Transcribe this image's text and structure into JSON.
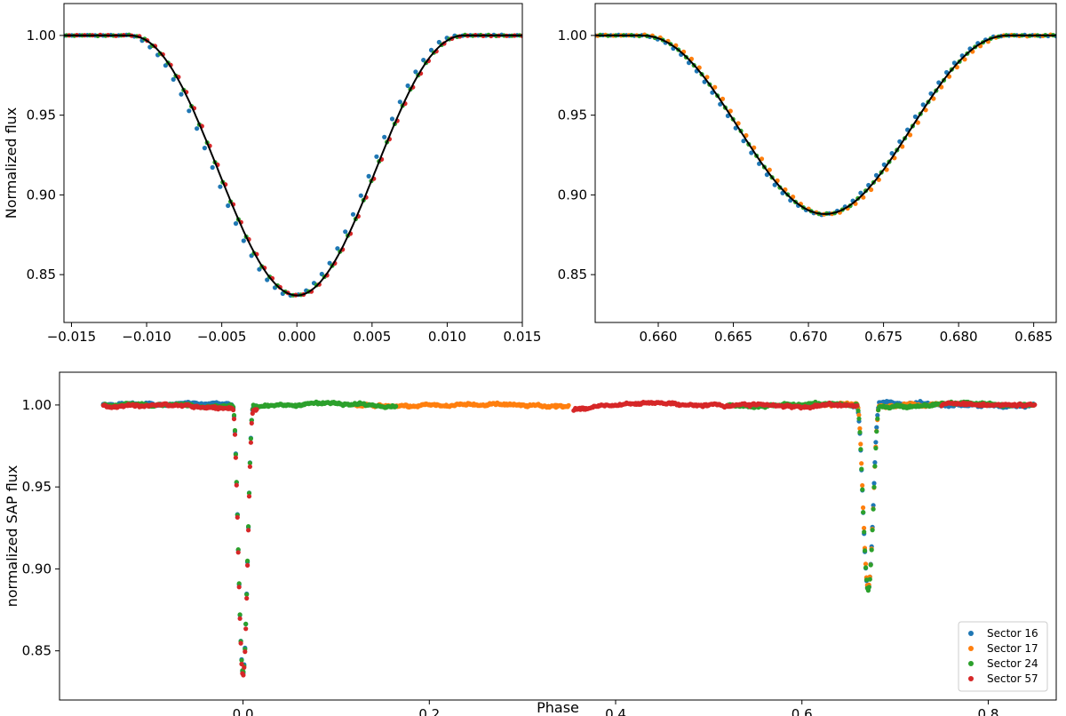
{
  "chart_data": [
    {
      "type": "scatter",
      "panel": "top-left",
      "title": "",
      "xlabel": "",
      "ylabel": "Normalized flux",
      "xlim": [
        -0.0155,
        0.015
      ],
      "ylim": [
        0.82,
        1.02
      ],
      "xticks": [
        "−0.015",
        "−0.010",
        "−0.005",
        "0.000",
        "0.005",
        "0.010",
        "0.015"
      ],
      "yticks": [
        "0.85",
        "0.90",
        "0.95",
        "1.00"
      ],
      "eclipse": {
        "center": 0.0,
        "half_width": 0.0112,
        "depth": 0.163,
        "min_flux": 0.837
      },
      "model": {
        "name": "",
        "color": "#000000"
      },
      "series": [
        {
          "label_ref": "Sector 16",
          "color": "#1f77b4",
          "x_offset": 0.0003,
          "x_range": [
            -0.0155,
            0.015
          ]
        },
        {
          "label_ref": "Sector 24",
          "color": "#2ca02c",
          "x_offset": 0.0,
          "x_range": [
            -0.0155,
            0.015
          ]
        },
        {
          "label_ref": "Sector 57",
          "color": "#d62728",
          "x_offset": -0.0001,
          "x_range": [
            -0.0155,
            0.015
          ]
        }
      ]
    },
    {
      "type": "scatter",
      "panel": "top-right",
      "title": "",
      "xlabel": "",
      "ylabel": "",
      "xlim": [
        0.6558,
        0.6865
      ],
      "ylim": [
        0.82,
        1.02
      ],
      "xticks": [
        "0.660",
        "0.665",
        "0.670",
        "0.675",
        "0.680",
        "0.685"
      ],
      "yticks": [
        "0.85",
        "0.90",
        "0.95",
        "1.00"
      ],
      "eclipse": {
        "center": 0.6711,
        "half_width": 0.0123,
        "depth": 0.112,
        "min_flux": 0.888
      },
      "model": {
        "name": "",
        "color": "#000000"
      },
      "series": [
        {
          "label_ref": "Sector 16",
          "color": "#1f77b4",
          "x_offset": 0.0002,
          "x_range": [
            0.6558,
            0.6865
          ]
        },
        {
          "label_ref": "Sector 17",
          "color": "#ff7f0e",
          "x_offset": -0.0002,
          "x_range": [
            0.6558,
            0.6865
          ]
        },
        {
          "label_ref": "Sector 24",
          "color": "#2ca02c",
          "x_offset": 0.0,
          "x_range": [
            0.6558,
            0.6865
          ]
        }
      ]
    },
    {
      "type": "scatter",
      "panel": "bottom",
      "title": "",
      "xlabel": "Phase",
      "ylabel": "normalized SAP flux",
      "xlim": [
        -0.197,
        0.873
      ],
      "ylim": [
        0.82,
        1.02
      ],
      "xticks": [
        "0.0",
        "0.2",
        "0.4",
        "0.6",
        "0.8"
      ],
      "yticks": [
        "0.85",
        "0.90",
        "0.95",
        "1.00"
      ],
      "legend": {
        "placement": "lower-right"
      },
      "eclipses": [
        {
          "center": 0.0,
          "half_width": 0.0112,
          "depth": 0.163
        },
        {
          "center": 0.6711,
          "half_width": 0.0123,
          "depth": 0.112
        }
      ],
      "series": [
        {
          "name": "Sector 16",
          "color": "#1f77b4",
          "x_ranges": [
            [
              -0.15,
              0.015
            ],
            [
              0.655,
              0.85
            ]
          ]
        },
        {
          "name": "Sector 17",
          "color": "#ff7f0e",
          "x_ranges": [
            [
              0.12,
              0.35
            ],
            [
              0.6,
              0.75
            ]
          ]
        },
        {
          "name": "Sector 24",
          "color": "#2ca02c",
          "x_ranges": [
            [
              -0.15,
              0.165
            ],
            [
              0.52,
              0.85
            ]
          ]
        },
        {
          "name": "Sector 57",
          "color": "#d62728",
          "x_ranges": [
            [
              -0.15,
              0.015
            ],
            [
              0.355,
              0.66
            ],
            [
              0.75,
              0.85
            ]
          ]
        }
      ]
    }
  ]
}
